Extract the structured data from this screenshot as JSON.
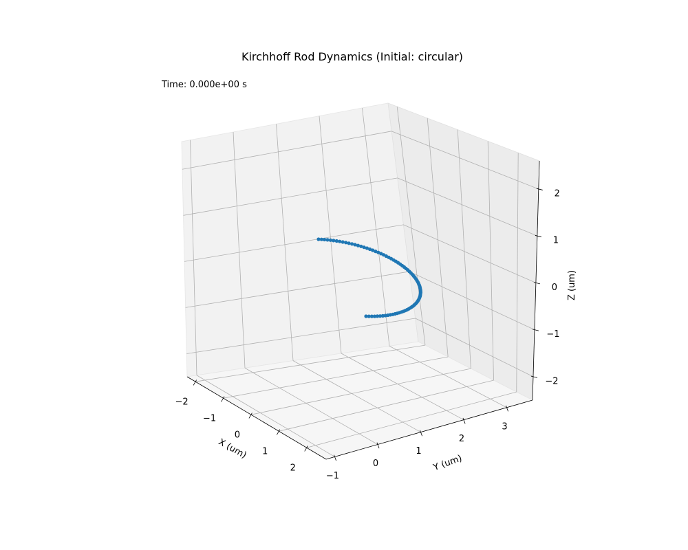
{
  "chart_data": {
    "type": "scatter",
    "projection": "3d",
    "title": "Kirchhoff Rod Dynamics (Initial: circular)",
    "annotation": "Time: 0.000e+00 s",
    "xlabel": "X (um)",
    "ylabel": "Y (um)",
    "zlabel": "Z (um)",
    "x_ticks": [
      "−2",
      "−1",
      "0",
      "1",
      "2"
    ],
    "y_ticks": [
      "−1",
      "0",
      "1",
      "2",
      "3"
    ],
    "z_ticks": [
      "−2",
      "−1",
      "0",
      "1",
      "2"
    ],
    "xlim": [
      -2.3,
      2.7
    ],
    "ylim": [
      -1.2,
      3.6
    ],
    "zlim": [
      -2.5,
      2.6
    ],
    "grid": true,
    "marker_color": "#1f77b4",
    "series": [
      {
        "curve": "semicircle_arc",
        "n_points": 81,
        "x": [
          0.0,
          0.0
        ],
        "y": [
          0.0,
          2.0
        ],
        "center": [
          0.0,
          1.0,
          0.0
        ],
        "radius": 1.0,
        "plane": "y-z, bulging toward -x",
        "start": [
          0.0,
          0.0,
          -1.0
        ],
        "end": [
          0.0,
          2.0,
          1.0
        ]
      }
    ]
  }
}
